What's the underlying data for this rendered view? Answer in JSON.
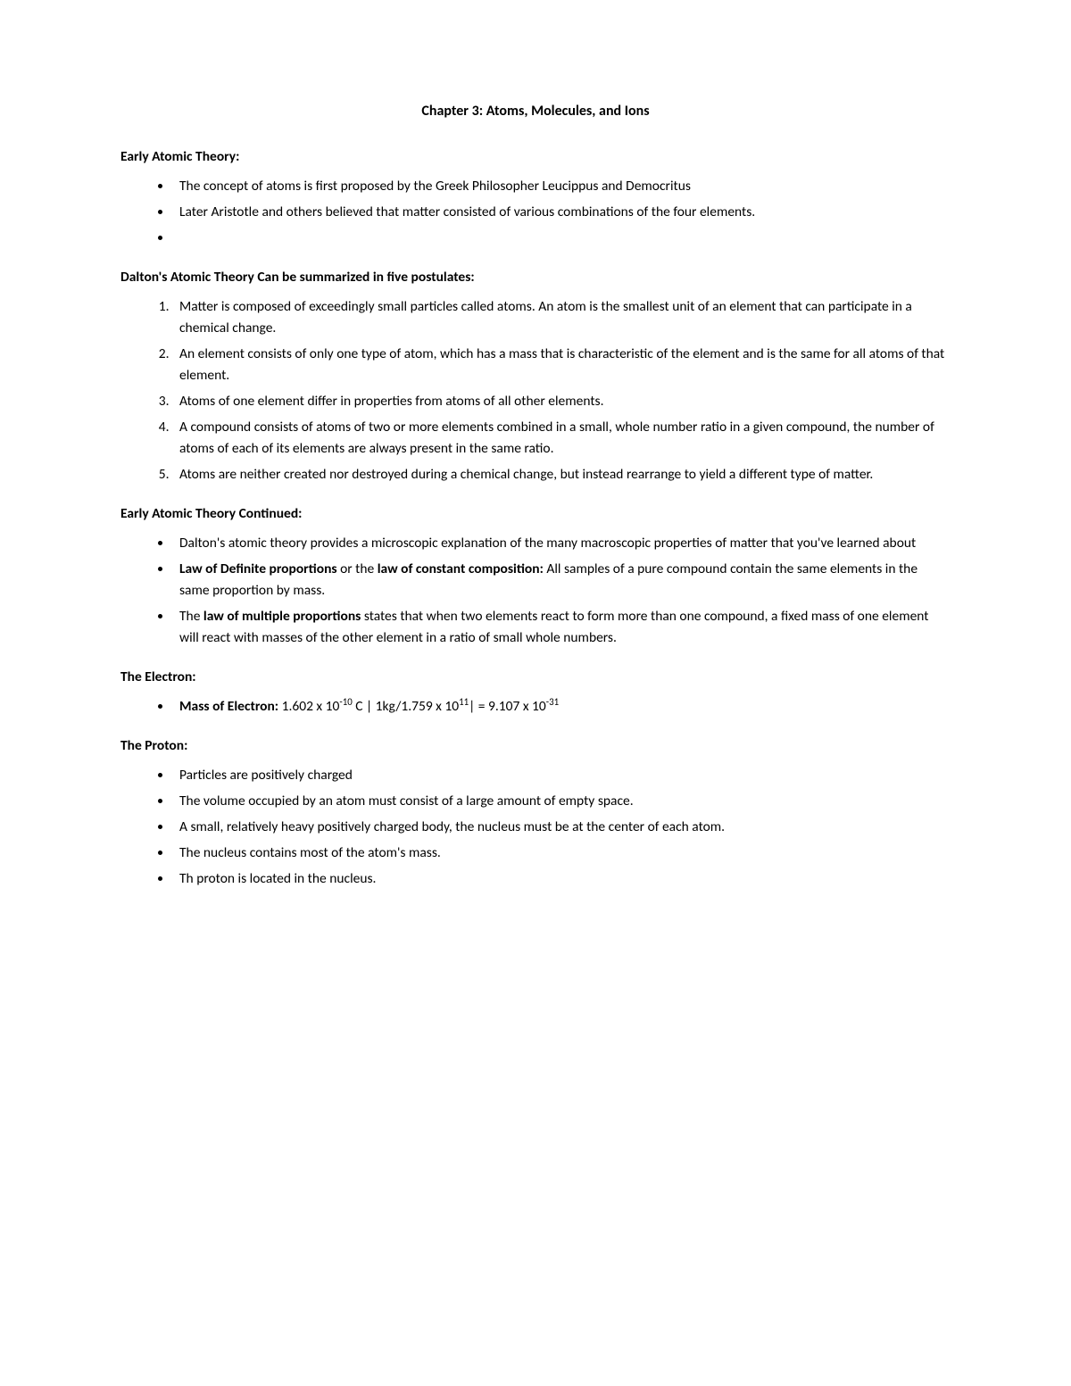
{
  "title": "Chapter 3: Atoms, Molecules, and Ions",
  "sections": [
    {
      "heading": "Early Atomic Theory:",
      "type": "ul",
      "items": [
        {
          "segments": [
            {
              "text": "The concept of atoms is first proposed by the Greek Philosopher Leucippus and Democritus"
            }
          ]
        },
        {
          "segments": [
            {
              "text": "Later Aristotle and others believed that matter consisted of various combinations of the four elements."
            }
          ]
        },
        {
          "segments": [
            {
              "text": ""
            }
          ]
        }
      ]
    },
    {
      "heading": "Dalton's Atomic Theory Can be summarized in five postulates:",
      "type": "ol",
      "items": [
        {
          "segments": [
            {
              "text": "Matter is composed of exceedingly small particles called atoms. An atom is the smallest unit of an element that can participate in a chemical change."
            }
          ]
        },
        {
          "segments": [
            {
              "text": "An element consists of only one type of atom, which has a mass that is characteristic of the element and is the same for all atoms of that element."
            }
          ]
        },
        {
          "segments": [
            {
              "text": "Atoms of one element differ in properties from atoms of all other elements."
            }
          ]
        },
        {
          "segments": [
            {
              "text": "A compound consists of atoms of two or more elements combined in a small, whole number ratio in a given compound, the number of atoms of each of its elements are always present in the same ratio."
            }
          ]
        },
        {
          "segments": [
            {
              "text": "Atoms are neither created nor destroyed during a chemical change, but instead rearrange to yield a different type of matter."
            }
          ]
        }
      ]
    },
    {
      "heading": "Early Atomic Theory Continued:",
      "type": "ul",
      "items": [
        {
          "segments": [
            {
              "text": "Dalton's atomic theory provides a microscopic explanation of the many macroscopic properties of matter that you've learned about"
            }
          ]
        },
        {
          "segments": [
            {
              "text": "Law of Definite proportions ",
              "bold": true
            },
            {
              "text": "or the "
            },
            {
              "text": "law of constant composition: ",
              "bold": true
            },
            {
              "text": "All samples of a pure compound contain the same elements in the same proportion by mass."
            }
          ]
        },
        {
          "segments": [
            {
              "text": "The "
            },
            {
              "text": "law of multiple proportions ",
              "bold": true
            },
            {
              "text": "states that when two elements react to form more than one compound, a fixed mass of one element will react with masses of the other element in a ratio of small whole numbers."
            }
          ]
        }
      ]
    },
    {
      "heading": "The Electron:",
      "type": "ul",
      "items": [
        {
          "segments": [
            {
              "text": "Mass of Electron: ",
              "bold": true
            },
            {
              "text": "1.602 x 10"
            },
            {
              "text": "-10",
              "sup": true
            },
            {
              "text": " C | 1kg/1.759 x 10"
            },
            {
              "text": "11",
              "sup": true
            },
            {
              "text": "| = 9.107 x 10"
            },
            {
              "text": "-31",
              "sup": true
            }
          ]
        }
      ]
    },
    {
      "heading": "The Proton:",
      "type": "ul",
      "items": [
        {
          "segments": [
            {
              "text": "Particles are positively charged"
            }
          ]
        },
        {
          "segments": [
            {
              "text": "The volume occupied by an atom must consist of a large amount of empty space."
            }
          ]
        },
        {
          "segments": [
            {
              "text": "A small, relatively heavy positively charged body, the nucleus must be at the center of each atom."
            }
          ]
        },
        {
          "segments": [
            {
              "text": "The nucleus contains most of the atom's mass."
            }
          ]
        },
        {
          "segments": [
            {
              "text": "Th proton is located in the nucleus."
            }
          ]
        }
      ]
    }
  ],
  "colors": {
    "background": "#ffffff",
    "text": "#000000"
  },
  "typography": {
    "font_family": "Calibri",
    "title_fontsize": 16,
    "heading_fontsize": 15.5,
    "body_fontsize": 15.5,
    "line_height": 1.55
  }
}
